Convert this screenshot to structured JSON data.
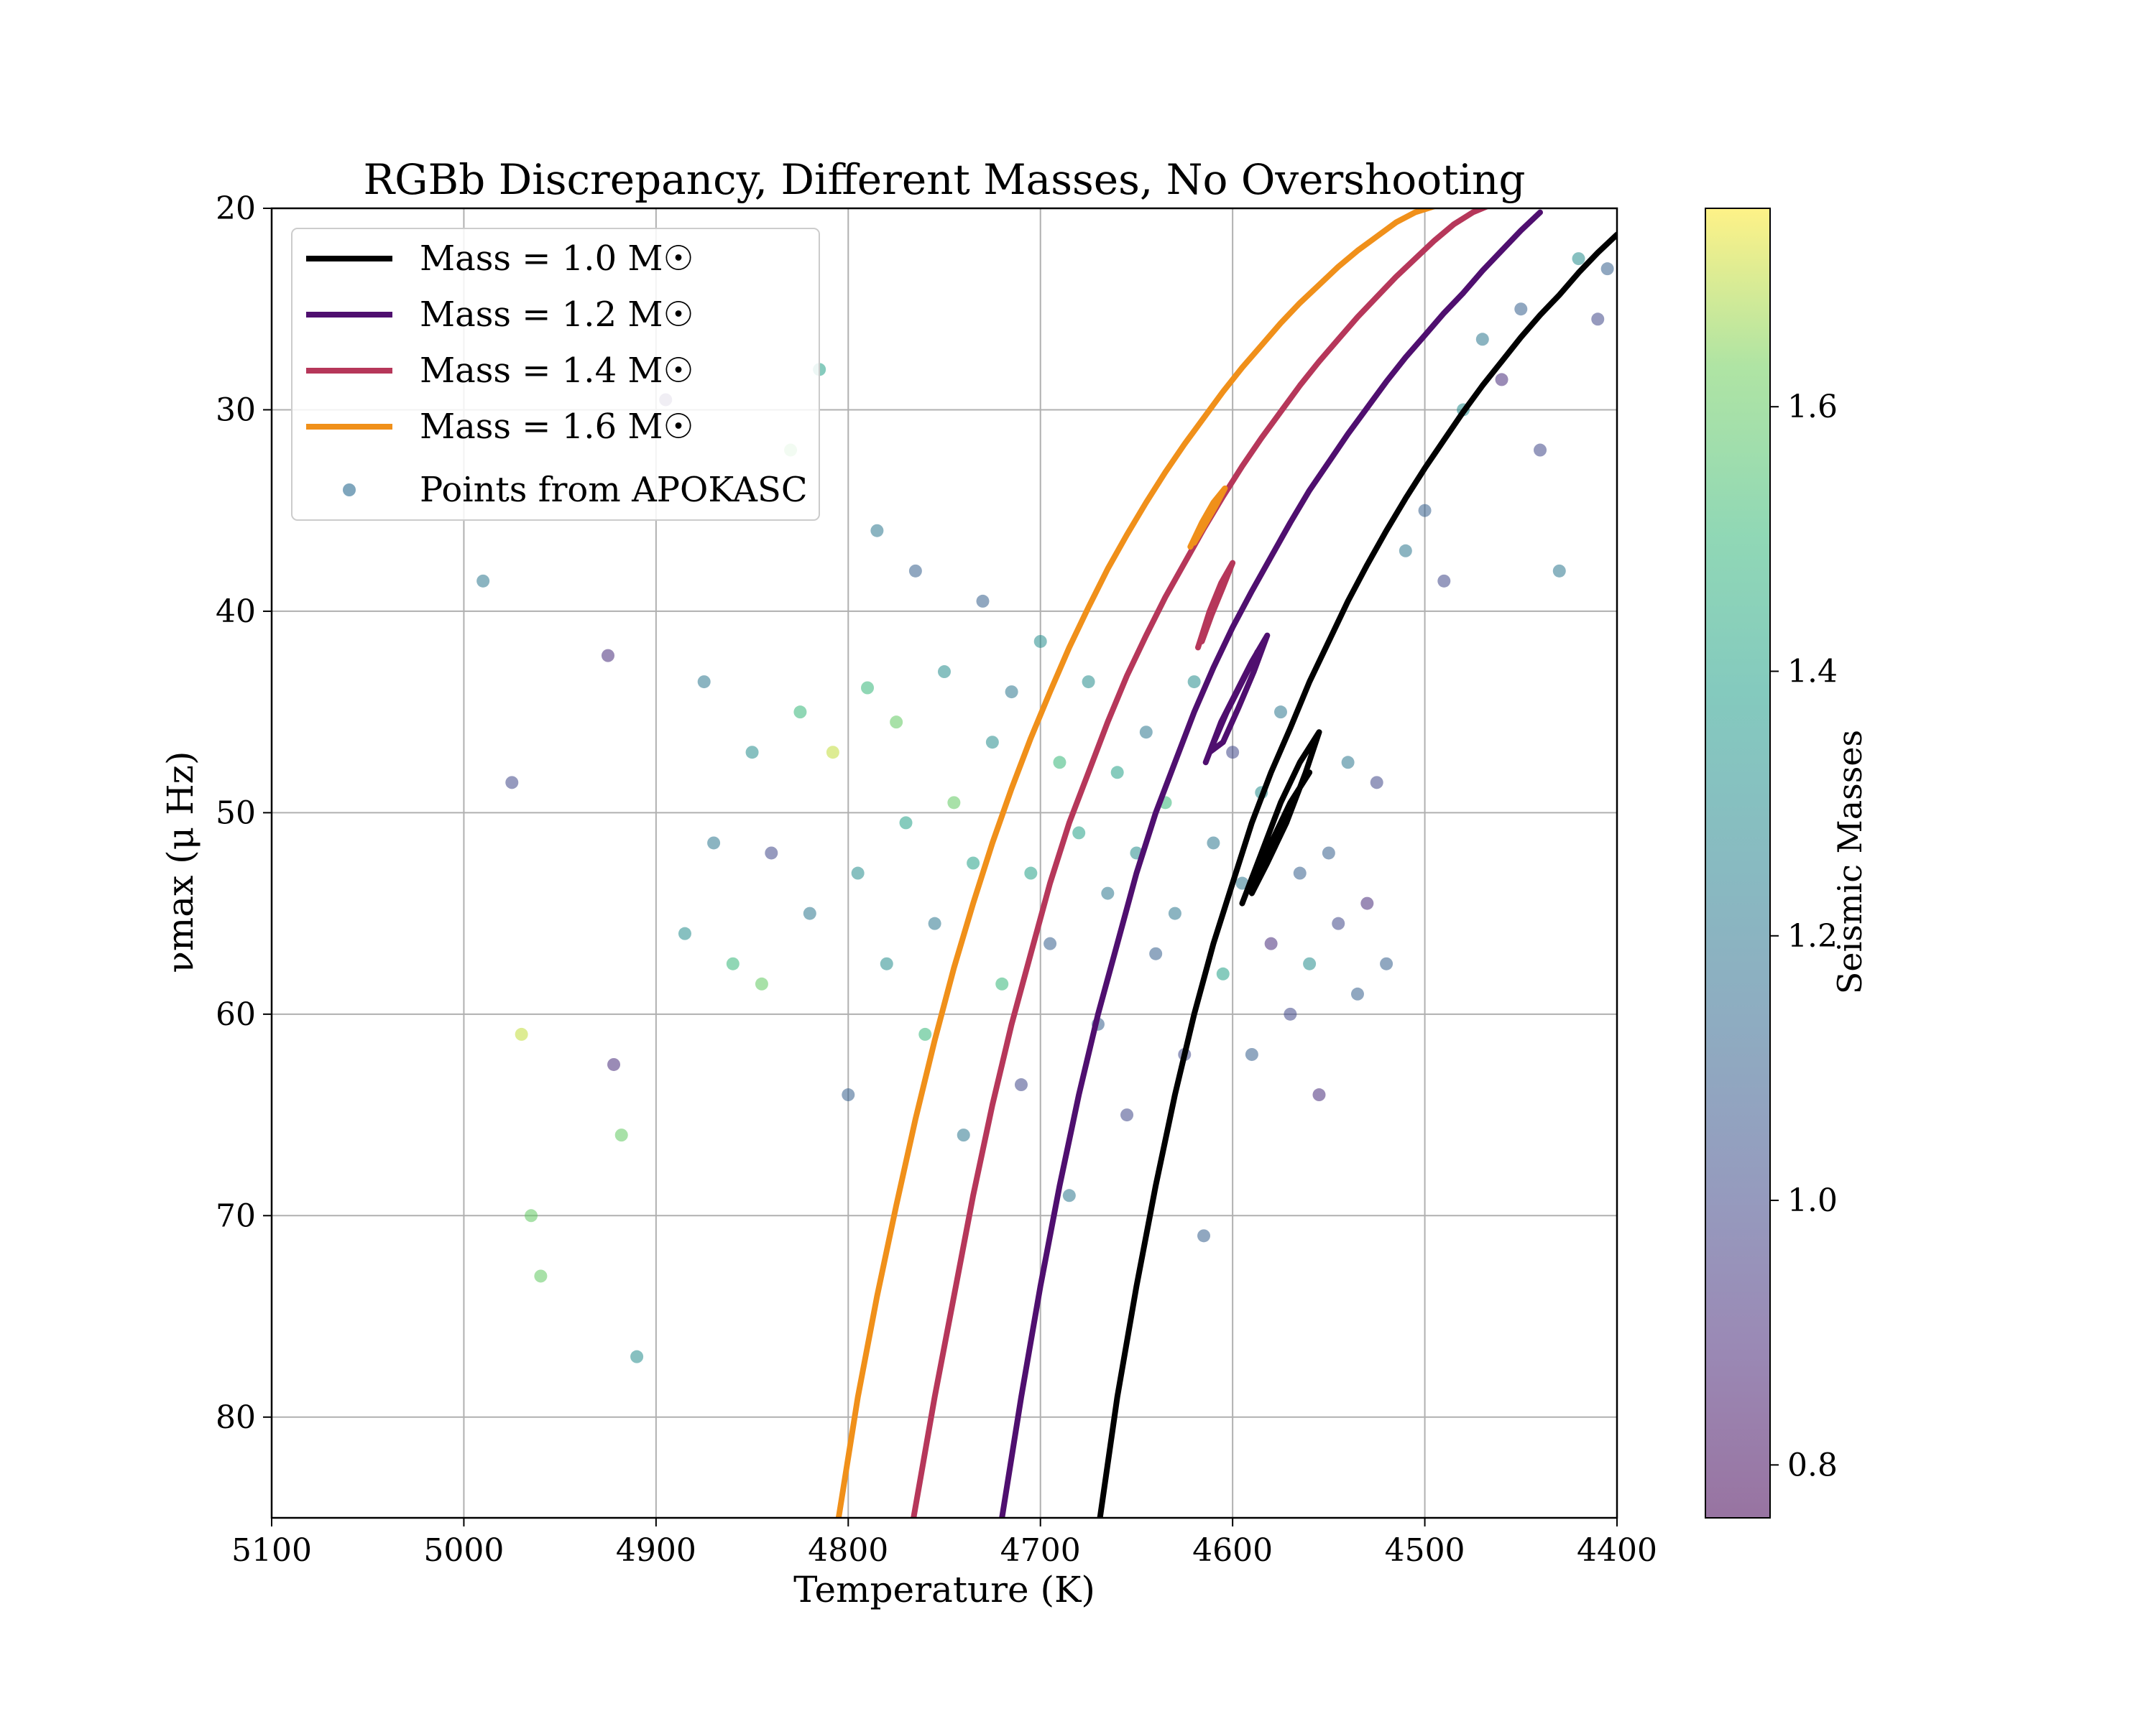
{
  "chart_data": {
    "type": "scatter",
    "title": "RGBb Discrepancy, Different Masses, No Overshooting",
    "xlabel": "Temperature (K)",
    "ylabel": "νmax (μ Hz)",
    "xlim": [
      5100,
      4400
    ],
    "ylim": [
      85,
      20
    ],
    "x_inverted": true,
    "y_inverted": true,
    "grid": true,
    "x_ticks": [
      5100,
      5000,
      4900,
      4800,
      4700,
      4600,
      4500,
      4400
    ],
    "y_ticks": [
      20,
      30,
      40,
      50,
      60,
      70,
      80
    ],
    "legend_position": "top-left",
    "legend": [
      {
        "label": "Mass = 1.0 M☉",
        "color": "#000000",
        "kind": "line"
      },
      {
        "label": "Mass = 1.2 M☉",
        "color": "#4f0f6f",
        "kind": "line"
      },
      {
        "label": "Mass = 1.4 M☉",
        "color": "#b6375a",
        "kind": "line"
      },
      {
        "label": "Mass = 1.6 M☉",
        "color": "#f0901a",
        "kind": "line"
      },
      {
        "label": "Points from APOKASC",
        "color": "#7fa6bd",
        "kind": "marker"
      }
    ],
    "tracks": [
      {
        "name": "Mass = 1.0 M☉",
        "color": "#000000",
        "x": [
          4669,
          4660,
          4650,
          4640,
          4630,
          4620,
          4610,
          4600,
          4590,
          4580,
          4570,
          4560,
          4550,
          4540,
          4530,
          4520,
          4510,
          4500,
          4490,
          4480,
          4470,
          4460,
          4450,
          4440,
          4430,
          4420,
          4410,
          4400
        ],
        "y": [
          85,
          79,
          73.5,
          68.5,
          64,
          60,
          56.5,
          53.5,
          50.5,
          48,
          45.8,
          43.5,
          41.5,
          39.5,
          37.7,
          36,
          34.4,
          32.9,
          31.5,
          30.1,
          28.8,
          27.6,
          26.4,
          25.3,
          24.3,
          23.2,
          22.2,
          21.3
        ],
        "bump": {
          "x": [
            4595,
            4585,
            4575,
            4565,
            4555,
            4562,
            4572,
            4582,
            4590,
            4580,
            4570,
            4560
          ],
          "y": [
            54.5,
            52,
            49.5,
            47.5,
            46,
            48,
            50.5,
            52.5,
            54,
            51.5,
            49.5,
            48
          ]
        }
      },
      {
        "name": "Mass = 1.2 M☉",
        "color": "#4f0f6f",
        "x": [
          4720,
          4710,
          4700,
          4690,
          4680,
          4670,
          4660,
          4650,
          4640,
          4630,
          4620,
          4610,
          4600,
          4590,
          4580,
          4570,
          4560,
          4550,
          4540,
          4530,
          4520,
          4510,
          4500,
          4490,
          4480,
          4470,
          4460,
          4450,
          4440
        ],
        "y": [
          85,
          79,
          73.5,
          68.5,
          64,
          60,
          56.5,
          53,
          50,
          47.5,
          45,
          42.8,
          40.8,
          39,
          37.3,
          35.6,
          34,
          32.6,
          31.2,
          29.9,
          28.6,
          27.4,
          26.3,
          25.2,
          24.2,
          23.1,
          22.1,
          21.1,
          20.2
        ],
        "bump": {
          "x": [
            4614,
            4606,
            4598,
            4590,
            4582,
            4589,
            4597,
            4605,
            4612,
            4603,
            4595,
            4587
          ],
          "y": [
            47.5,
            45.5,
            44,
            42.5,
            41.2,
            43,
            44.8,
            46.5,
            47,
            45,
            43.5,
            42
          ]
        }
      },
      {
        "name": "Mass = 1.4 M☉",
        "color": "#b6375a",
        "x": [
          4766,
          4755,
          4745,
          4735,
          4725,
          4715,
          4705,
          4695,
          4685,
          4675,
          4665,
          4655,
          4645,
          4635,
          4625,
          4615,
          4605,
          4595,
          4585,
          4575,
          4565,
          4555,
          4545,
          4535,
          4525,
          4515,
          4505,
          4495,
          4485,
          4475,
          4465,
          4452
        ],
        "y": [
          85,
          79,
          74,
          69,
          64.5,
          60.5,
          57,
          53.5,
          50.5,
          48,
          45.5,
          43.2,
          41.2,
          39.3,
          37.6,
          35.9,
          34.3,
          32.8,
          31.4,
          30.1,
          28.8,
          27.6,
          26.5,
          25.4,
          24.4,
          23.4,
          22.5,
          21.6,
          20.8,
          20.2,
          19.8,
          19.6
        ],
        "bump": {
          "x": [
            4618,
            4612,
            4606,
            4600,
            4605,
            4611,
            4616,
            4609,
            4603
          ],
          "y": [
            41.8,
            40,
            38.6,
            37.6,
            38.8,
            40.2,
            41.5,
            39.5,
            38.2
          ]
        }
      },
      {
        "name": "Mass = 1.6 M☉",
        "color": "#f0901a",
        "x": [
          4805,
          4795,
          4785,
          4775,
          4765,
          4755,
          4745,
          4735,
          4725,
          4715,
          4705,
          4695,
          4685,
          4675,
          4665,
          4655,
          4645,
          4635,
          4625,
          4615,
          4605,
          4595,
          4585,
          4575,
          4565,
          4555,
          4545,
          4535,
          4525,
          4515,
          4505,
          4495,
          4485,
          4475
        ],
        "y": [
          85,
          79,
          74,
          69.5,
          65.2,
          61.3,
          57.7,
          54.5,
          51.5,
          48.8,
          46.3,
          44,
          41.8,
          39.8,
          37.9,
          36.2,
          34.6,
          33.1,
          31.7,
          30.4,
          29.1,
          27.9,
          26.8,
          25.7,
          24.7,
          23.8,
          22.9,
          22.1,
          21.4,
          20.7,
          20.2,
          19.9,
          19.7,
          19.6
        ],
        "bump": {
          "x": [
            4622,
            4616,
            4610,
            4604,
            4609,
            4615,
            4620,
            4613
          ],
          "y": [
            36.8,
            35.6,
            34.6,
            33.9,
            34.8,
            35.8,
            36.6,
            35.4
          ]
        }
      }
    ],
    "scatter": {
      "name": "Points from APOKASC",
      "color_by": "Seismic Masses",
      "x": [
        4990,
        4975,
        4970,
        4965,
        4960,
        4925,
        4922,
        4918,
        4910,
        4895,
        4885,
        4875,
        4870,
        4860,
        4850,
        4845,
        4840,
        4830,
        4825,
        4820,
        4815,
        4808,
        4800,
        4795,
        4790,
        4785,
        4780,
        4775,
        4770,
        4765,
        4760,
        4755,
        4750,
        4745,
        4740,
        4735,
        4730,
        4725,
        4720,
        4715,
        4710,
        4705,
        4700,
        4695,
        4690,
        4685,
        4680,
        4675,
        4670,
        4665,
        4660,
        4655,
        4650,
        4645,
        4640,
        4635,
        4630,
        4625,
        4620,
        4615,
        4610,
        4605,
        4600,
        4595,
        4590,
        4585,
        4580,
        4575,
        4570,
        4565,
        4560,
        4555,
        4550,
        4545,
        4540,
        4535,
        4530,
        4525,
        4520,
        4510,
        4500,
        4490,
        4480,
        4470,
        4460,
        4450,
        4440,
        4430,
        4420,
        4410,
        4405
      ],
      "y": [
        38.5,
        48.5,
        61,
        70,
        73,
        42.2,
        62.5,
        66,
        77,
        29.5,
        56,
        43.5,
        51.5,
        57.5,
        47,
        58.5,
        52,
        32,
        45,
        55,
        28,
        47,
        64,
        53,
        43.8,
        36,
        57.5,
        45.5,
        50.5,
        38,
        61,
        55.5,
        43,
        49.5,
        66,
        52.5,
        39.5,
        46.5,
        58.5,
        44,
        63.5,
        53,
        41.5,
        56.5,
        47.5,
        69,
        51,
        43.5,
        60.5,
        54,
        48,
        65,
        52,
        46,
        57,
        49.5,
        55,
        62,
        43.5,
        71,
        51.5,
        58,
        47,
        53.5,
        62,
        49,
        56.5,
        45,
        60,
        53,
        57.5,
        64,
        52,
        55.5,
        47.5,
        59,
        54.5,
        48.5,
        57.5,
        37,
        35,
        38.5,
        30,
        26.5,
        28.5,
        25,
        32,
        38,
        22.5,
        25.5,
        23
      ],
      "mass": [
        1.2,
        1.0,
        1.7,
        1.6,
        1.6,
        0.9,
        0.9,
        1.6,
        1.3,
        0.9,
        1.3,
        1.2,
        1.2,
        1.5,
        1.3,
        1.6,
        1.0,
        1.6,
        1.5,
        1.2,
        1.4,
        1.7,
        1.1,
        1.3,
        1.5,
        1.2,
        1.3,
        1.6,
        1.4,
        1.1,
        1.5,
        1.2,
        1.3,
        1.6,
        1.2,
        1.4,
        1.1,
        1.3,
        1.5,
        1.2,
        1.0,
        1.4,
        1.3,
        1.1,
        1.5,
        1.2,
        1.4,
        1.3,
        1.1,
        1.2,
        1.4,
        1.0,
        1.3,
        1.2,
        1.1,
        1.5,
        1.2,
        1.0,
        1.3,
        1.1,
        1.2,
        1.4,
        1.0,
        1.2,
        1.1,
        1.3,
        0.9,
        1.2,
        1.0,
        1.1,
        1.3,
        0.9,
        1.1,
        1.0,
        1.2,
        1.1,
        0.9,
        1.0,
        1.1,
        1.2,
        1.1,
        1.0,
        1.3,
        1.2,
        0.9,
        1.1,
        1.0,
        1.2,
        1.3,
        1.0,
        1.1
      ]
    },
    "colorbar": {
      "label": "Seismic Masses",
      "range": [
        0.76,
        1.75
      ],
      "ticks": [
        0.8,
        1.0,
        1.2,
        1.4,
        1.6
      ],
      "tick_labels": [
        "0.8",
        "1.0",
        "1.2",
        "1.4",
        "1.6"
      ]
    }
  }
}
